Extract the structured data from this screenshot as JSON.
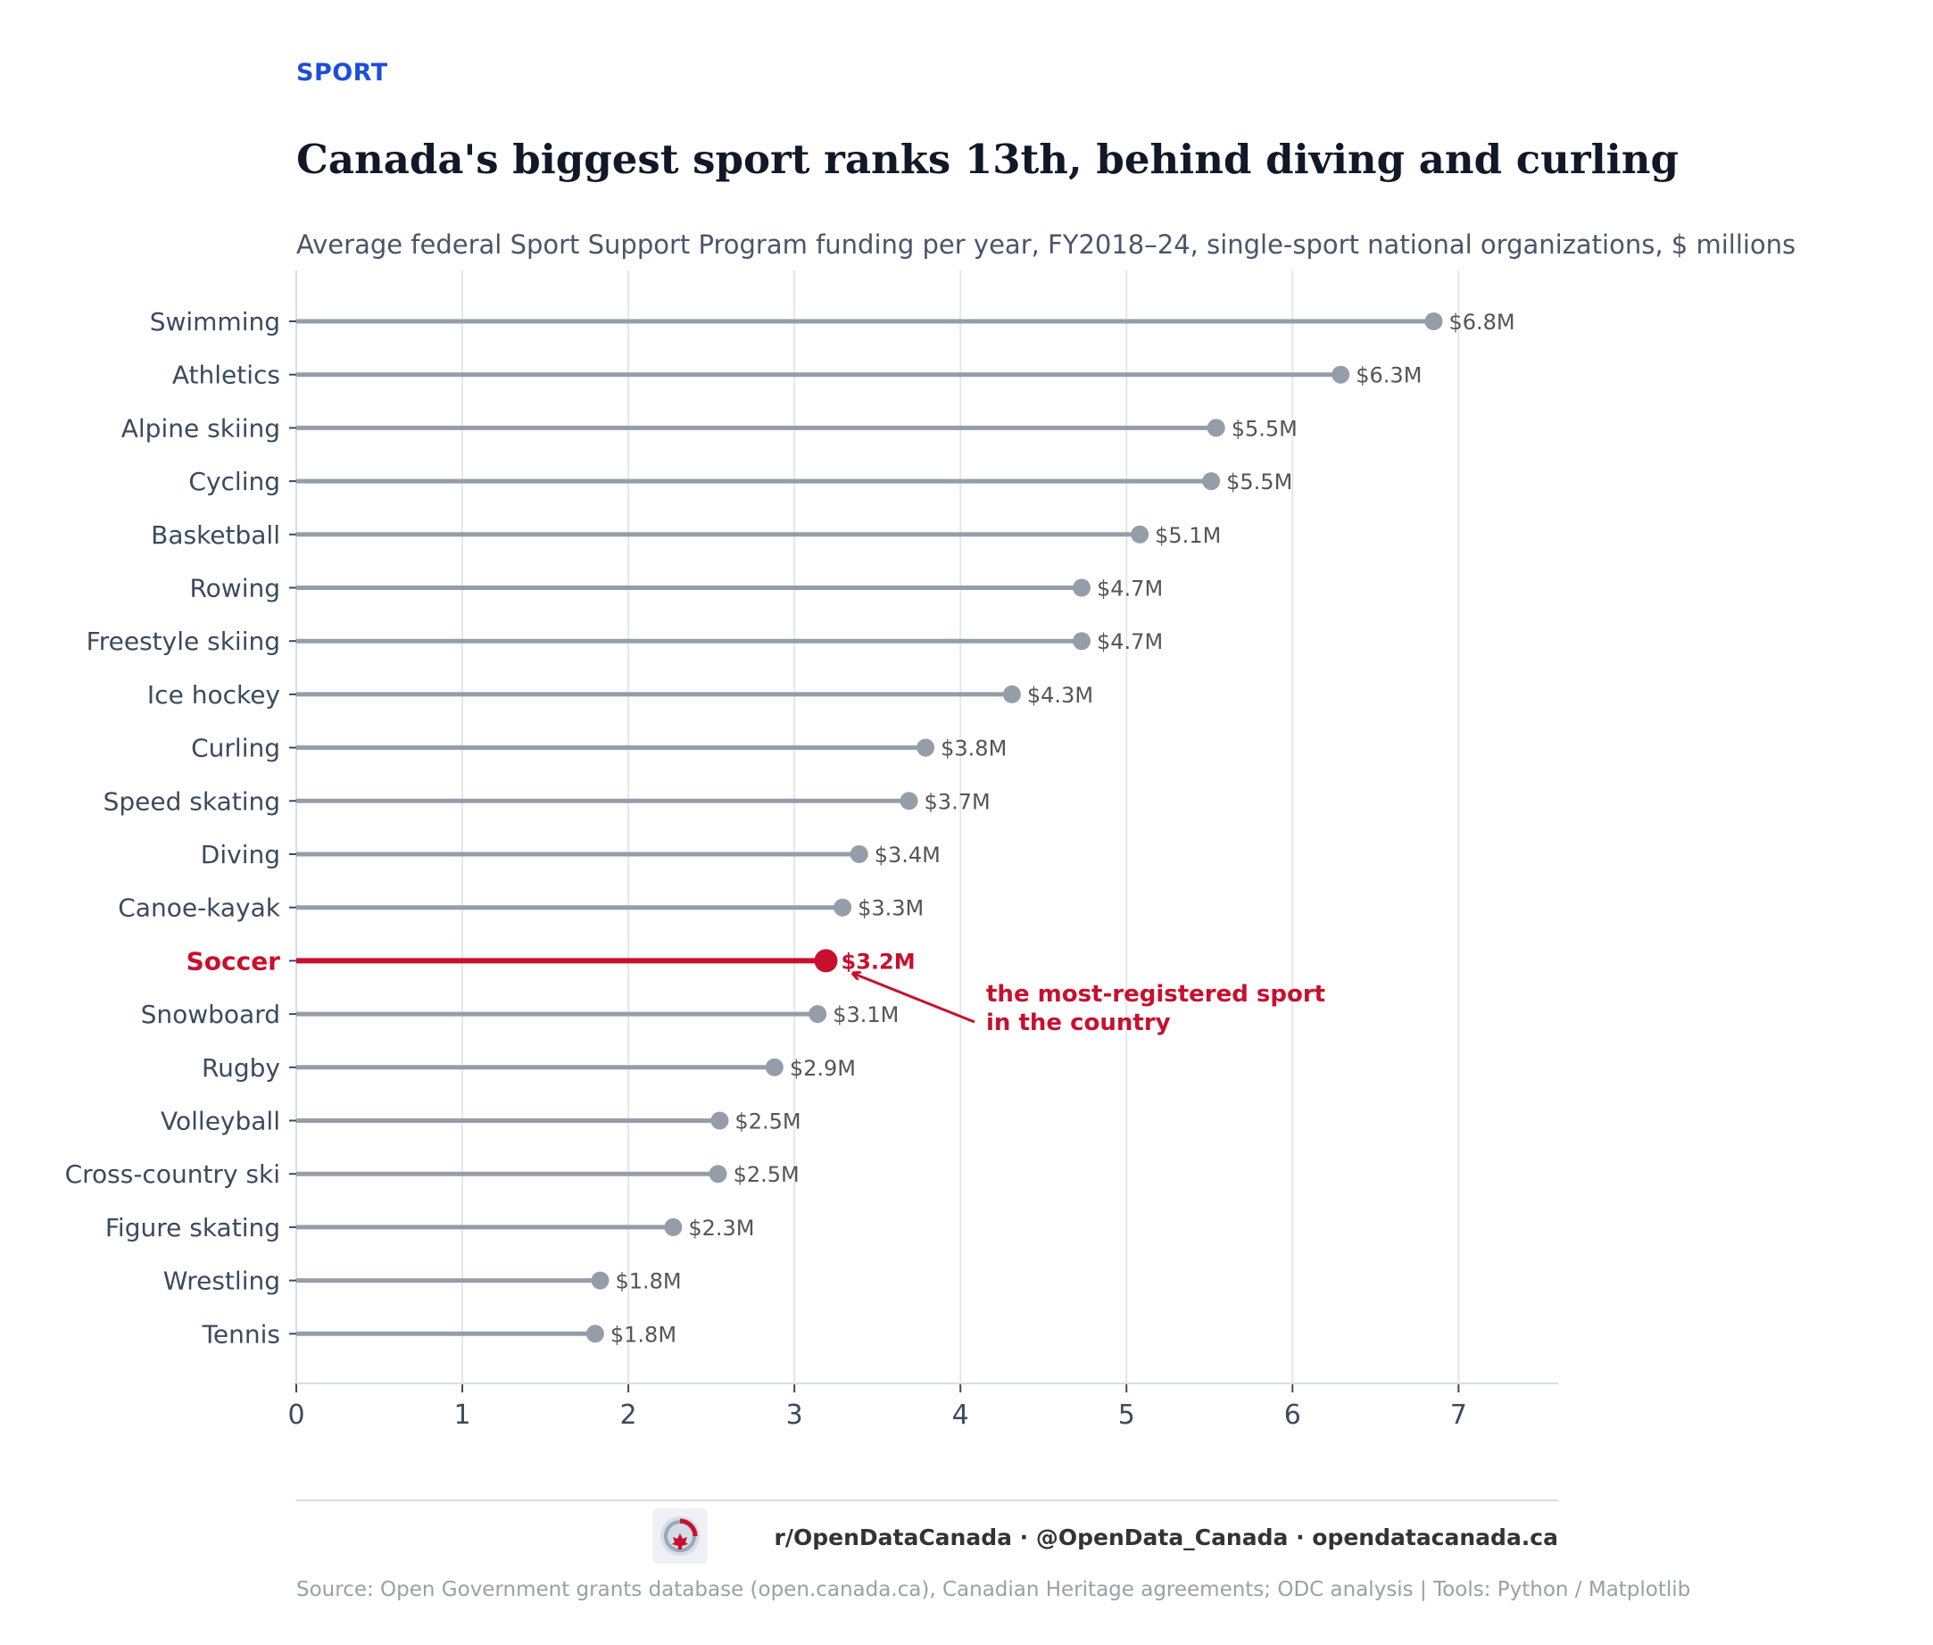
{
  "header": {
    "kicker": "SPORT",
    "title": "Canada's biggest sport ranks 13th, behind diving and curling",
    "subtitle": "Average federal Sport Support Program funding per year, FY2018–24, single-sport national organizations, $ millions"
  },
  "chart_data": {
    "type": "lollipop",
    "orientation": "horizontal",
    "categories": [
      "Swimming",
      "Athletics",
      "Alpine skiing",
      "Cycling",
      "Basketball",
      "Rowing",
      "Freestyle skiing",
      "Ice hockey",
      "Curling",
      "Speed skating",
      "Diving",
      "Canoe-kayak",
      "Soccer",
      "Snowboard",
      "Rugby",
      "Volleyball",
      "Cross-country ski",
      "Figure skating",
      "Wrestling",
      "Tennis"
    ],
    "values": [
      6.85,
      6.29,
      5.54,
      5.51,
      5.08,
      4.73,
      4.73,
      4.31,
      3.79,
      3.69,
      3.39,
      3.29,
      3.19,
      3.14,
      2.88,
      2.55,
      2.54,
      2.27,
      1.83,
      1.8
    ],
    "value_labels": [
      "$6.8M",
      "$6.3M",
      "$5.5M",
      "$5.5M",
      "$5.1M",
      "$4.7M",
      "$4.7M",
      "$4.3M",
      "$3.8M",
      "$3.7M",
      "$3.4M",
      "$3.3M",
      "$3.2M",
      "$3.1M",
      "$2.9M",
      "$2.5M",
      "$2.5M",
      "$2.3M",
      "$1.8M",
      "$1.8M"
    ],
    "highlight": "Soccer",
    "xlim": [
      0,
      7.6
    ],
    "xticks": [
      "0",
      "1",
      "2",
      "3",
      "4",
      "5",
      "6",
      "7"
    ],
    "grid": "vertical",
    "annotation": {
      "target": "Soccer",
      "lines": [
        "the most-registered sport",
        "in the country"
      ]
    },
    "colors": {
      "default": "#959ea8",
      "highlight": "#c8102e",
      "grid": "#e3e7ec",
      "axis_text": "#3b4a5e",
      "value_text": "#555555"
    }
  },
  "footer": {
    "social": "r/OpenDataCanada  ·  @OpenData_Canada  ·  opendatacanada.ca",
    "source": "Source: Open Government grants database (open.canada.ca), Canadian Heritage agreements; ODC analysis  |  Tools: Python / Matplotlib"
  }
}
